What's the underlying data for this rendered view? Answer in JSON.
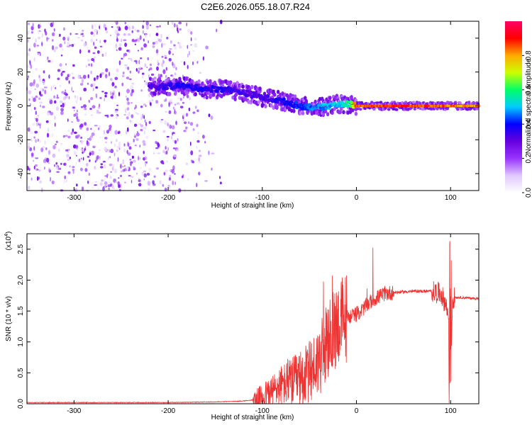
{
  "title": "C2E6.2026.055.18.07.R24",
  "chart_data": [
    {
      "type": "heatmap",
      "xlabel": "Height of straight line (km)",
      "ylabel": "Frequency (Hz)",
      "xlim": [
        -350,
        130
      ],
      "ylim": [
        -50,
        50
      ],
      "xticks": [
        -300,
        -200,
        -100,
        0,
        100
      ],
      "yticks": [
        -40,
        -20,
        0,
        20,
        40
      ],
      "colorbar": {
        "label": "Normalized spectral amplitude",
        "range": [
          0.0,
          1.0
        ],
        "ticks": [
          "0.0",
          "0.2",
          "0.4",
          "0.6",
          "0.8"
        ],
        "colors": [
          "#ffffff",
          "#e0c8ff",
          "#9933ff",
          "#6600dd",
          "#0000ff",
          "#00ccff",
          "#00ff66",
          "#ccff00",
          "#ffaa00",
          "#ff0000",
          "#ff0066"
        ]
      },
      "ridge": {
        "x": [
          -215,
          -190,
          -160,
          -140,
          -120,
          -100,
          -80,
          -60,
          -40,
          -20,
          -5,
          0,
          20,
          60,
          100,
          130
        ],
        "y": [
          11,
          12,
          10,
          10,
          8,
          5,
          3,
          0,
          -1,
          1,
          1,
          0,
          0,
          0,
          0,
          0
        ],
        "amplitude": [
          0.35,
          0.4,
          0.4,
          0.38,
          0.35,
          0.35,
          0.4,
          0.45,
          0.5,
          0.55,
          0.65,
          0.95,
          0.95,
          0.95,
          0.9,
          0.85
        ]
      }
    },
    {
      "type": "line",
      "xlabel": "Height of straight line (km)",
      "ylabel": "SNR (10 * v/v)",
      "yscale_label": "(x10",
      "yscale_exp": "4",
      "xlim": [
        -350,
        130
      ],
      "ylim": [
        0,
        2.75
      ],
      "xticks": [
        -300,
        -200,
        -100,
        0,
        100
      ],
      "yticks": [
        "0.0",
        "0.5",
        "1.0",
        "1.5",
        "2.0",
        "2.5"
      ],
      "color": "#ee3333",
      "series": [
        {
          "x": [
            -350,
            -250,
            -200,
            -150,
            -125,
            -110,
            -100,
            -90,
            -80,
            -70,
            -60,
            -50,
            -40,
            -30,
            -20,
            -10,
            0,
            5,
            10,
            15,
            20,
            30,
            40,
            50,
            60,
            70,
            80,
            85,
            90,
            95,
            98,
            100,
            102,
            105,
            110,
            120,
            130
          ],
          "y": [
            0.02,
            0.02,
            0.02,
            0.03,
            0.04,
            0.06,
            0.12,
            0.2,
            0.3,
            0.35,
            0.4,
            0.5,
            0.7,
            1.0,
            1.3,
            1.4,
            1.45,
            1.5,
            1.58,
            1.65,
            1.7,
            1.78,
            1.8,
            1.81,
            1.82,
            1.82,
            1.82,
            1.8,
            1.78,
            1.6,
            1.4,
            0.15,
            1.7,
            1.72,
            1.72,
            1.71,
            1.7
          ]
        }
      ]
    }
  ]
}
